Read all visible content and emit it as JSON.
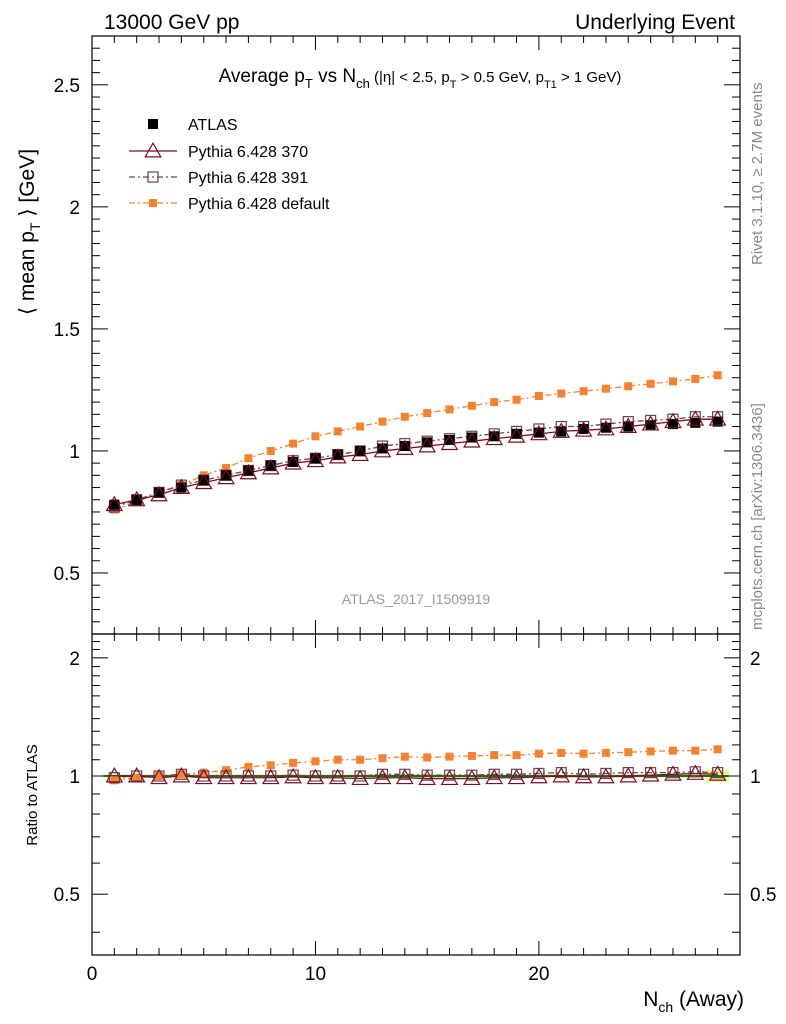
{
  "header": {
    "left": "13000 GeV pp",
    "right": "Underlying Event"
  },
  "title": {
    "main": "Average p",
    "main_sub": "T",
    "vs": " vs N",
    "vs_sub": "ch",
    "cuts_a": " (|η| < 2.5, p",
    "cuts_a_sub": "T",
    "cuts_b": " > 0.5 GeV, p",
    "cuts_b_sub": "T1",
    "cuts_c": " > 1 GeV)"
  },
  "side_labels": {
    "rivet": "Rivet 3.1.10, ≥ 2.7M events",
    "mcplots": "mcplots.cern.ch [arXiv:1306.3436]"
  },
  "watermark": "ATLAS_2017_I1509919",
  "axes": {
    "ylabel_prefix": "⟨ mean p",
    "ylabel_sub": "T",
    "ylabel_suffix": " ⟩ [GeV]",
    "ratio_ylabel": "Ratio to ATLAS",
    "xlabel_main": "N",
    "xlabel_sub": "ch",
    "xlabel_suffix": " (Away)"
  },
  "legend": [
    {
      "label": "ATLAS"
    },
    {
      "label": "Pythia 6.428 370"
    },
    {
      "label": "Pythia 6.428 391"
    },
    {
      "label": "Pythia 6.428 default"
    }
  ],
  "chart_data": {
    "type": "scatter",
    "x": [
      1,
      2,
      3,
      4,
      5,
      6,
      7,
      8,
      9,
      10,
      11,
      12,
      13,
      14,
      15,
      16,
      17,
      18,
      19,
      20,
      21,
      22,
      23,
      24,
      25,
      26,
      27,
      28
    ],
    "xlim": [
      0,
      29
    ],
    "ylim": [
      0.25,
      2.7
    ],
    "ratio_ylim": [
      0.35,
      2.3
    ],
    "xticks": [
      0,
      10,
      20
    ],
    "yticks": [
      0.5,
      1,
      1.5,
      2,
      2.5
    ],
    "ratio_yticks": [
      0.5,
      1,
      2
    ],
    "colors": {
      "ATLAS": "#000000",
      "p370": "#7a0f1f",
      "p391": "#6b4050",
      "default": "#f58231",
      "band": "#d8f542"
    },
    "series": [
      {
        "name": "ATLAS",
        "values": [
          0.78,
          0.8,
          0.83,
          0.85,
          0.88,
          0.9,
          0.92,
          0.94,
          0.955,
          0.97,
          0.985,
          1.0,
          1.01,
          1.02,
          1.035,
          1.045,
          1.055,
          1.06,
          1.07,
          1.075,
          1.08,
          1.09,
          1.095,
          1.1,
          1.105,
          1.11,
          1.115,
          1.12
        ]
      },
      {
        "name": "Pythia 6.428 370",
        "values": [
          0.78,
          0.8,
          0.82,
          0.85,
          0.87,
          0.89,
          0.91,
          0.93,
          0.95,
          0.96,
          0.975,
          0.985,
          1.0,
          1.01,
          1.02,
          1.03,
          1.04,
          1.05,
          1.06,
          1.07,
          1.08,
          1.085,
          1.09,
          1.1,
          1.11,
          1.12,
          1.13,
          1.13
        ]
      },
      {
        "name": "Pythia 6.428 391",
        "values": [
          0.77,
          0.8,
          0.83,
          0.86,
          0.88,
          0.9,
          0.92,
          0.94,
          0.96,
          0.97,
          0.985,
          1.0,
          1.02,
          1.03,
          1.04,
          1.05,
          1.06,
          1.07,
          1.08,
          1.09,
          1.1,
          1.1,
          1.11,
          1.12,
          1.125,
          1.13,
          1.14,
          1.14
        ]
      },
      {
        "name": "Pythia 6.428 default",
        "values": [
          0.76,
          0.79,
          0.83,
          0.86,
          0.9,
          0.93,
          0.97,
          1.0,
          1.03,
          1.06,
          1.08,
          1.1,
          1.12,
          1.14,
          1.155,
          1.17,
          1.185,
          1.2,
          1.21,
          1.225,
          1.235,
          1.245,
          1.255,
          1.265,
          1.275,
          1.285,
          1.295,
          1.31
        ]
      }
    ],
    "ratio_series": [
      {
        "name": "Pythia 6.428 370",
        "values": [
          1.0,
          1.0,
          0.99,
          1.0,
          0.99,
          0.99,
          0.99,
          0.99,
          0.995,
          0.99,
          0.99,
          0.985,
          0.99,
          0.99,
          0.985,
          0.985,
          0.985,
          0.99,
          0.99,
          0.995,
          1.0,
          0.995,
          0.995,
          1.0,
          1.005,
          1.01,
          1.015,
          1.01
        ]
      },
      {
        "name": "Pythia 6.428 391",
        "values": [
          0.99,
          1.0,
          1.0,
          1.01,
          1.0,
          1.0,
          1.0,
          1.0,
          1.005,
          1.0,
          1.0,
          1.0,
          1.01,
          1.01,
          1.005,
          1.005,
          1.005,
          1.01,
          1.01,
          1.015,
          1.02,
          1.01,
          1.015,
          1.02,
          1.02,
          1.02,
          1.025,
          1.02
        ]
      },
      {
        "name": "Pythia 6.428 default",
        "values": [
          0.975,
          0.99,
          1.0,
          1.01,
          1.02,
          1.035,
          1.055,
          1.065,
          1.08,
          1.09,
          1.1,
          1.1,
          1.11,
          1.12,
          1.115,
          1.12,
          1.125,
          1.13,
          1.13,
          1.14,
          1.145,
          1.14,
          1.145,
          1.15,
          1.155,
          1.16,
          1.16,
          1.17
        ]
      }
    ]
  }
}
